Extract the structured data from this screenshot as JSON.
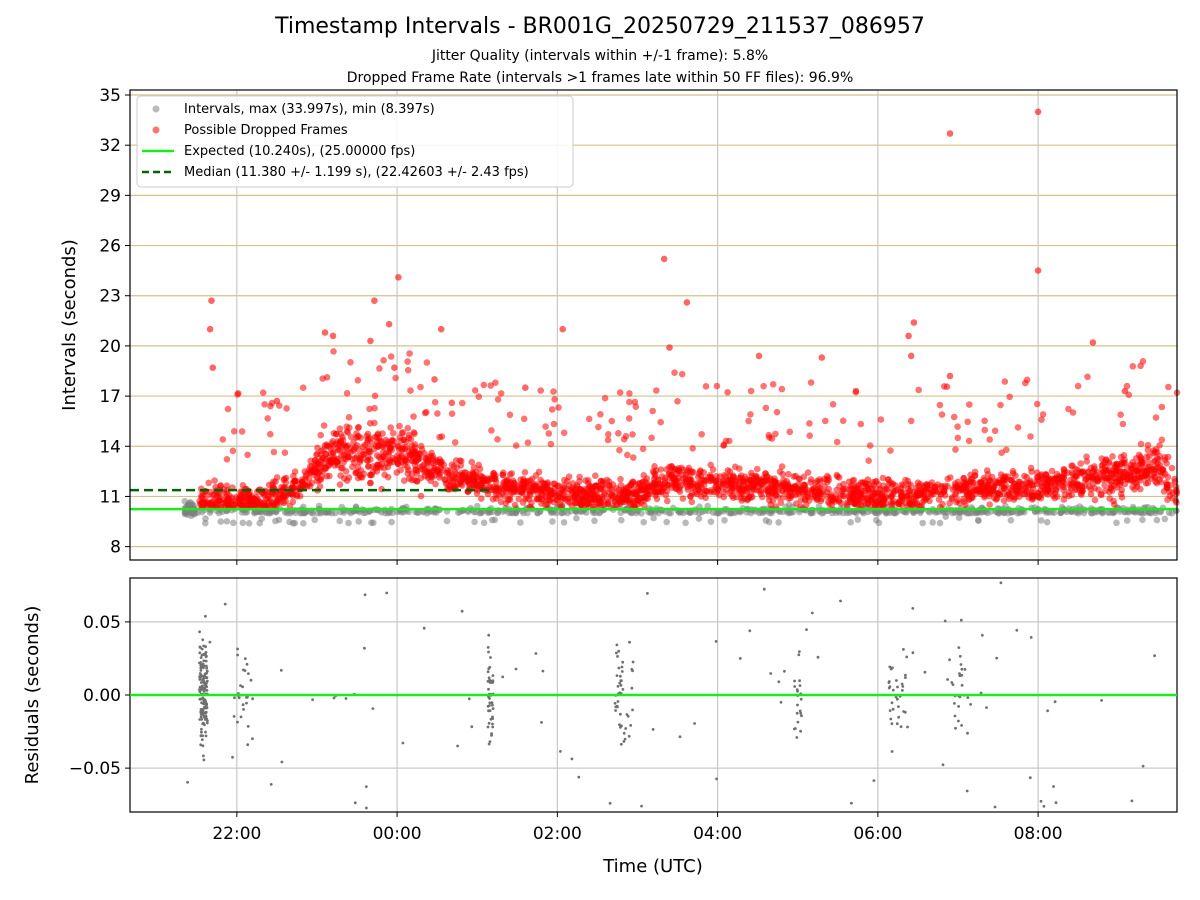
{
  "chart_data": [
    {
      "type": "scatter",
      "title": "Timestamp Intervals - BR001G_20250729_211537_086957",
      "subtitle_1": "Jitter Quality (intervals within +/-1 frame): 5.8%",
      "subtitle_2": "Dropped Frame Rate (intervals >1 frames late within 50 FF files): 96.9%",
      "ylabel": "Intervals (seconds)",
      "ylim": [
        7.2,
        35.3
      ],
      "yticks": [
        "8",
        "11",
        "14",
        "17",
        "20",
        "23",
        "26",
        "29",
        "32",
        "35"
      ],
      "xlim": [
        "20:40",
        "09:44"
      ],
      "xticks": [
        "22:00",
        "00:00",
        "02:00",
        "04:00",
        "06:00",
        "08:00"
      ],
      "grid": "on",
      "legend_placement": "upper-left",
      "legend": [
        "Intervals, max (33.997s), min (8.397s)",
        "Possible Dropped Frames",
        "Expected (10.240s), (25.00000 fps)",
        "Median (11.380 +/- 1.199 s), (22.42603 +/- 2.43 fps)"
      ],
      "expected_interval": 10.24,
      "median_interval": 11.38,
      "max_interval": 33.997,
      "min_interval": 8.397,
      "colors": {
        "intervals": "#808080",
        "dropped": "#ff0000",
        "expected": "#1aeb1a",
        "median": "#006400",
        "grid_y": "#d4c28a",
        "grid_x": "#c8c8c8"
      },
      "series": [
        {
          "name": "Possible Dropped Frames",
          "points": [
            [
              "21:41",
              22.7
            ],
            [
              "21:40",
              21.0
            ],
            [
              "21:42",
              18.7
            ],
            [
              "22:30",
              16.7
            ],
            [
              "23:06",
              20.8
            ],
            [
              "23:12",
              20.6
            ],
            [
              "23:40",
              20.3
            ],
            [
              "23:43",
              22.7
            ],
            [
              "23:58",
              18.7
            ],
            [
              "23:54",
              21.3
            ],
            [
              "00:01",
              24.1
            ],
            [
              "00:28",
              18.0
            ],
            [
              "00:33",
              21.0
            ],
            [
              "00:41",
              16.6
            ],
            [
              "01:36",
              17.5
            ],
            [
              "02:04",
              21.0
            ],
            [
              "03:20",
              25.2
            ],
            [
              "03:24",
              19.9
            ],
            [
              "03:37",
              22.6
            ],
            [
              "04:31",
              19.4
            ],
            [
              "05:18",
              19.3
            ],
            [
              "06:23",
              20.6
            ],
            [
              "06:27",
              21.4
            ],
            [
              "06:25",
              19.4
            ],
            [
              "06:54",
              32.7
            ],
            [
              "06:54",
              18.2
            ],
            [
              "08:00",
              33.997
            ],
            [
              "08:00",
              24.5
            ],
            [
              "08:41",
              20.2
            ],
            [
              "09:05",
              17.3
            ]
          ]
        }
      ]
    },
    {
      "type": "scatter",
      "ylabel": "Residuals (seconds)",
      "xlabel": "Time (UTC)",
      "ylim": [
        -0.08,
        0.08
      ],
      "yticks": [
        "−0.05",
        "0.00",
        "0.05"
      ],
      "xticks": [
        "22:00",
        "00:00",
        "02:00",
        "04:00",
        "06:00",
        "08:00"
      ],
      "reference_line": 0.0
    }
  ]
}
